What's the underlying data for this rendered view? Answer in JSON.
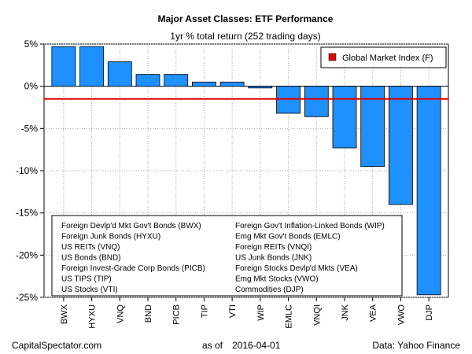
{
  "chart_data": {
    "type": "bar",
    "title": "Major Asset Classes: ETF Performance",
    "subtitle": "1yr % total return (252 trading days)",
    "categories": [
      "BWX",
      "HYXU",
      "VNQ",
      "BND",
      "PICB",
      "TIP",
      "VTI",
      "WIP",
      "EMLC",
      "VNQI",
      "JNK",
      "VEA",
      "VWO",
      "DJP"
    ],
    "values": [
      4.7,
      4.7,
      2.9,
      1.4,
      1.4,
      0.5,
      0.5,
      -0.2,
      -3.2,
      -3.6,
      -7.3,
      -9.5,
      -14.0,
      -24.7
    ],
    "ylim": [
      -25,
      5
    ],
    "yticks": [
      5,
      0,
      -5,
      -10,
      -15,
      -20,
      -25
    ],
    "ytick_labels": [
      "5%",
      "0%",
      "-5%",
      "-10%",
      "-15%",
      "-20%",
      "-25%"
    ],
    "bar_color": "#1e90ff",
    "reference_line": {
      "name": "Global Market Index (F)",
      "value": -1.5,
      "color": "#e00000"
    },
    "legend": {
      "placement": "top-right",
      "entries": [
        "Global Market Index (F)"
      ]
    },
    "grid": true,
    "notes_left": [
      "Foreign Devlp'd Mkt Gov't Bonds (BWX)",
      "Foreign Junk Bonds (HYXU)",
      "US REITs (VNQ)",
      "US Bonds (BND)",
      "Foreign Invest-Grade Corp Bonds (PICB)",
      "US TIPS (TIP)",
      "US Stocks (VTI)"
    ],
    "notes_right": [
      "Foreign Gov't Inflation-Linked Bonds (WIP)",
      "Emg Mkt Gov't Bonds (EMLC)",
      "Foreign REITs (VNQI)",
      "US Junk Bonds (JNK)",
      "Foreign Stocks Devlp'd Mkts (VEA)",
      "Emg Mkt Stocks (VWO)",
      "Commodities (DJP)"
    ]
  },
  "footer": {
    "source_site": "CapitalSpectator.com",
    "as_of_label": "as of",
    "date": "2016-04-01",
    "data_source": "Data: Yahoo Finance"
  }
}
